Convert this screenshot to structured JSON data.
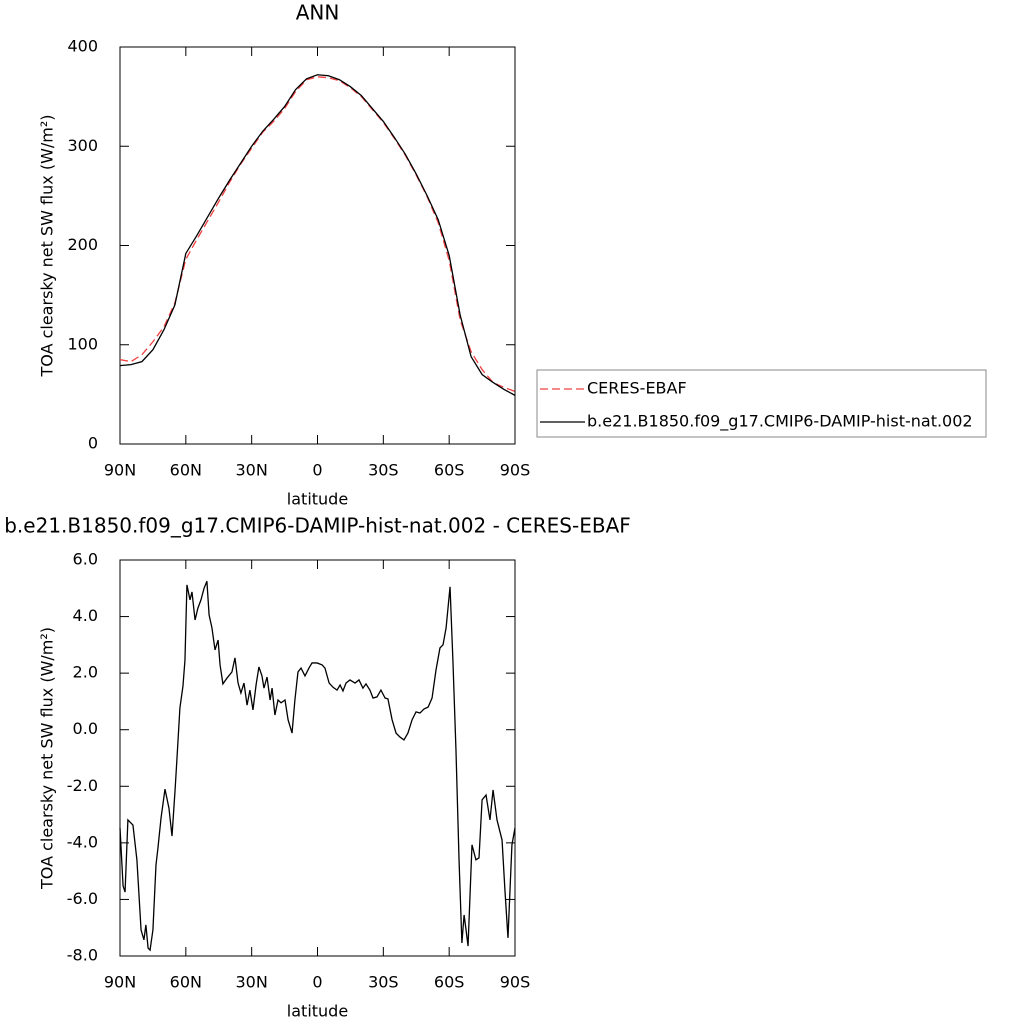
{
  "chart_data": [
    {
      "type": "line",
      "title": "ANN",
      "xlabel": "latitude",
      "ylabel": "TOA clearsky net SW flux (W/m²)",
      "x": [
        90,
        85,
        80,
        75,
        70,
        65,
        60,
        55,
        50,
        45,
        40,
        35,
        30,
        25,
        20,
        15,
        10,
        5,
        0,
        -5,
        -10,
        -15,
        -20,
        -25,
        -30,
        -35,
        -40,
        -45,
        -50,
        -55,
        -60,
        -65,
        -70,
        -75,
        -80,
        -85,
        -90
      ],
      "series": [
        {
          "name": "CERES-EBAF",
          "color": "#f04040",
          "dash": "dashed",
          "values": [
            85,
            83,
            90,
            103,
            118,
            142,
            186,
            206,
            225,
            244,
            264,
            282,
            298,
            314,
            325,
            338,
            355,
            367,
            370,
            369,
            366,
            359,
            350,
            337,
            324,
            308,
            291,
            271,
            249,
            223,
            185,
            125,
            93,
            75,
            62,
            57,
            53
          ]
        },
        {
          "name": "b.e21.B1850.f09_g17.CMIP6-DAMIP-hist-nat.002",
          "color": "#000000",
          "dash": "solid",
          "values": [
            79,
            80,
            83,
            95,
            115,
            140,
            192,
            210,
            229,
            248,
            266,
            283,
            300,
            315,
            327,
            340,
            357,
            368,
            372,
            371,
            367,
            360,
            351,
            338,
            325,
            309,
            292,
            272,
            250,
            226,
            190,
            130,
            88,
            70,
            62,
            55,
            49
          ]
        }
      ],
      "xlim": [
        90,
        -90
      ],
      "xticks": [
        {
          "value": 90,
          "label": "90N"
        },
        {
          "value": 60,
          "label": "60N"
        },
        {
          "value": 30,
          "label": "30N"
        },
        0,
        {
          "value": -30,
          "label": "30S"
        },
        {
          "value": -60,
          "label": "60S"
        },
        {
          "value": -90,
          "label": "90S"
        }
      ],
      "ylim": [
        0,
        400
      ],
      "yticks": [
        0,
        100,
        200,
        300,
        400
      ],
      "legend": "right"
    },
    {
      "type": "line",
      "title": "b.e21.B1850.f09_g17.CMIP6-DAMIP-hist-nat.002 - CERES-EBAF",
      "xlabel": "latitude",
      "ylabel": "TOA clearsky net SW flux (W/m²)",
      "color": "#000000",
      "x": [
        90,
        88.6,
        87.7,
        86.4,
        84.1,
        82.3,
        80.4,
        79.1,
        78.2,
        77.2,
        76.3,
        75.0,
        73.6,
        72.7,
        71.3,
        69.5,
        67.7,
        66.3,
        64.9,
        64.0,
        62.7,
        61.3,
        60.4,
        59.5,
        58.1,
        57.2,
        55.8,
        54.5,
        53.1,
        51.7,
        50.4,
        49.4,
        48.1,
        46.7,
        45.3,
        44.4,
        43.1,
        41.2,
        39.0,
        37.6,
        36.2,
        34.9,
        33.5,
        32.1,
        30.8,
        29.4,
        28.0,
        26.7,
        25.3,
        24.4,
        23.0,
        21.6,
        20.7,
        19.4,
        18.0,
        16.6,
        14.8,
        13.4,
        11.6,
        10.3,
        8.9,
        7.5,
        5.7,
        3.9,
        2.5,
        0.2,
        -2.1,
        -3.4,
        -5.3,
        -7.1,
        -8.9,
        -10.3,
        -11.6,
        -13.0,
        -14.8,
        -17.1,
        -18.9,
        -20.7,
        -22.1,
        -23.9,
        -25.3,
        -27.1,
        -28.9,
        -30.8,
        -32.1,
        -34.0,
        -35.8,
        -37.6,
        -39.4,
        -41.2,
        -43.1,
        -44.9,
        -46.7,
        -48.5,
        -50.4,
        -52.2,
        -54.0,
        -55.8,
        -57.2,
        -58.6,
        -60.4,
        -61.7,
        -63.1,
        -64.5,
        -65.8,
        -66.8,
        -67.7,
        -68.6,
        -70.4,
        -72.2,
        -73.6,
        -75.0,
        -76.8,
        -78.6,
        -80.0,
        -81.8,
        -84.1,
        -85.4,
        -86.8,
        -88.6,
        -90
      ],
      "values": [
        -3.47,
        -5.52,
        -5.74,
        -3.19,
        -3.37,
        -4.6,
        -7.08,
        -7.43,
        -6.9,
        -7.72,
        -7.79,
        -7.08,
        -4.78,
        -4.18,
        -3.12,
        -2.1,
        -2.77,
        -3.76,
        -2.13,
        -0.96,
        0.77,
        1.55,
        2.46,
        5.12,
        4.59,
        4.87,
        3.88,
        4.3,
        4.59,
        5.0,
        5.25,
        4.06,
        3.6,
        2.82,
        3.17,
        2.29,
        1.62,
        1.83,
        2.04,
        2.54,
        1.65,
        1.3,
        1.65,
        0.87,
        1.4,
        0.7,
        1.58,
        2.22,
        1.9,
        1.47,
        1.86,
        1.05,
        1.47,
        0.52,
        1.05,
        0.95,
        1.05,
        0.35,
        -0.12,
        1.05,
        2.04,
        2.18,
        1.9,
        2.18,
        2.36,
        2.36,
        2.29,
        2.18,
        1.65,
        1.5,
        1.4,
        1.58,
        1.37,
        1.65,
        1.76,
        1.65,
        1.76,
        1.47,
        1.62,
        1.4,
        1.12,
        1.16,
        1.4,
        1.12,
        1.09,
        0.35,
        -0.12,
        -0.26,
        -0.36,
        -0.12,
        0.35,
        0.63,
        0.59,
        0.73,
        0.8,
        1.12,
        2.11,
        2.89,
        3.0,
        3.6,
        5.05,
        2.46,
        -0.72,
        -4.6,
        -7.54,
        -6.55,
        -7.08,
        -7.65,
        -4.07,
        -4.6,
        -4.53,
        -2.48,
        -2.31,
        -3.19,
        -2.13,
        -3.19,
        -3.9,
        -5.66,
        -7.36,
        -4.07,
        -3.47
      ],
      "xlim": [
        90,
        -90
      ],
      "xticks": [
        {
          "value": 90,
          "label": "90N"
        },
        {
          "value": 60,
          "label": "60N"
        },
        {
          "value": 30,
          "label": "30N"
        },
        0,
        {
          "value": -30,
          "label": "30S"
        },
        {
          "value": -60,
          "label": "60S"
        },
        {
          "value": -90,
          "label": "90S"
        }
      ],
      "ylim": [
        -8,
        6
      ],
      "yticks": [
        {
          "value": -8,
          "label": "-8.0"
        },
        {
          "value": -6,
          "label": "-6.0"
        },
        {
          "value": -4,
          "label": "-4.0"
        },
        {
          "value": -2,
          "label": "-2.0"
        },
        {
          "value": 0,
          "label": "0.0"
        },
        {
          "value": 2,
          "label": "2.0"
        },
        {
          "value": 4,
          "label": "4.0"
        },
        {
          "value": 6,
          "label": "6.0"
        }
      ]
    }
  ]
}
